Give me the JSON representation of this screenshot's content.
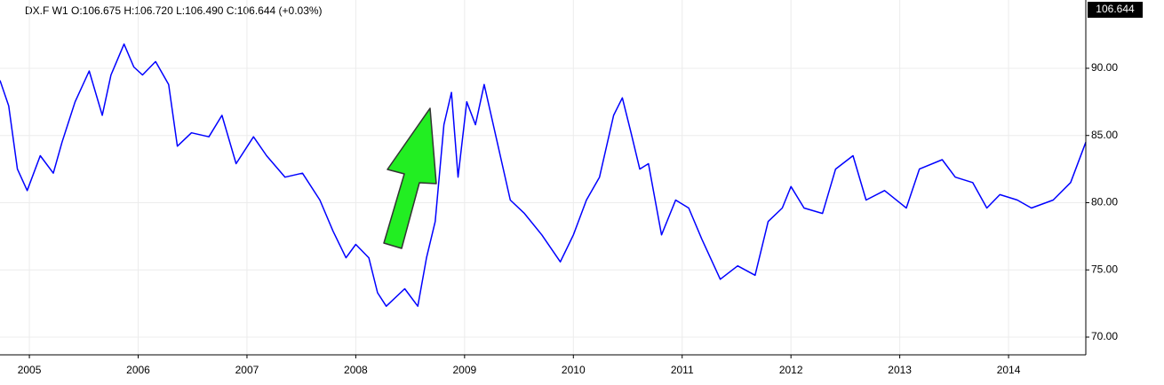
{
  "chart_data": {
    "type": "line",
    "header": "DX.F  W1  O:106.675  H:106.720  L:106.490  C:106.644  (+0.03%)",
    "last_price": "106.644",
    "grid": true,
    "xlim": [
      2004.73,
      2014.71
    ],
    "xticks": [
      2005,
      2006,
      2007,
      2008,
      2009,
      2010,
      2011,
      2012,
      2013,
      2014
    ],
    "ylim": [
      68.68,
      95.08
    ],
    "yticks": [
      {
        "value": 70,
        "label": "70.00"
      },
      {
        "value": 75,
        "label": "75.00"
      },
      {
        "value": 80,
        "label": "80.00"
      },
      {
        "value": 85,
        "label": "85.00"
      },
      {
        "value": 90,
        "label": "90.00"
      }
    ],
    "x": [
      2004.73,
      2004.81,
      2004.89,
      2004.98,
      2005.1,
      2005.22,
      2005.3,
      2005.42,
      2005.55,
      2005.67,
      2005.75,
      2005.87,
      2005.96,
      2006.04,
      2006.16,
      2006.28,
      2006.36,
      2006.49,
      2006.65,
      2006.77,
      2006.9,
      2007.06,
      2007.18,
      2007.35,
      2007.51,
      2007.67,
      2007.79,
      2007.91,
      2008.0,
      2008.12,
      2008.2,
      2008.28,
      2008.45,
      2008.57,
      2008.65,
      2008.73,
      2008.81,
      2008.88,
      2008.94,
      2009.02,
      2009.1,
      2009.18,
      2009.3,
      2009.42,
      2009.55,
      2009.71,
      2009.88,
      2010.0,
      2010.12,
      2010.24,
      2010.37,
      2010.45,
      2010.53,
      2010.61,
      2010.69,
      2010.81,
      2010.94,
      2011.06,
      2011.18,
      2011.35,
      2011.51,
      2011.67,
      2011.79,
      2011.92,
      2012.0,
      2012.12,
      2012.29,
      2012.41,
      2012.57,
      2012.69,
      2012.86,
      2013.06,
      2013.18,
      2013.39,
      2013.51,
      2013.67,
      2013.8,
      2013.92,
      2014.08,
      2014.21,
      2014.41,
      2014.57,
      2014.71
    ],
    "series": [
      {
        "name": "DX.F",
        "color": "#0000ff",
        "values": [
          89.1,
          87.2,
          82.5,
          80.9,
          83.5,
          82.2,
          84.5,
          87.5,
          89.8,
          86.5,
          89.5,
          91.8,
          90.1,
          89.5,
          90.5,
          88.8,
          84.2,
          85.2,
          84.9,
          86.5,
          82.9,
          84.9,
          83.5,
          81.9,
          82.2,
          80.2,
          77.9,
          75.9,
          76.9,
          75.9,
          73.3,
          72.3,
          73.6,
          72.3,
          75.9,
          78.6,
          85.8,
          88.2,
          81.9,
          87.5,
          85.8,
          88.8,
          84.5,
          80.2,
          79.2,
          77.6,
          75.6,
          77.6,
          80.2,
          81.9,
          86.5,
          87.8,
          85.2,
          82.5,
          82.9,
          77.6,
          80.2,
          79.6,
          77.3,
          74.3,
          75.3,
          74.6,
          78.6,
          79.6,
          81.2,
          79.6,
          79.2,
          82.5,
          83.5,
          80.2,
          80.9,
          79.6,
          82.5,
          83.2,
          81.9,
          81.5,
          79.6,
          80.6,
          80.2,
          79.6,
          80.2,
          81.5,
          84.5
        ]
      }
    ]
  }
}
